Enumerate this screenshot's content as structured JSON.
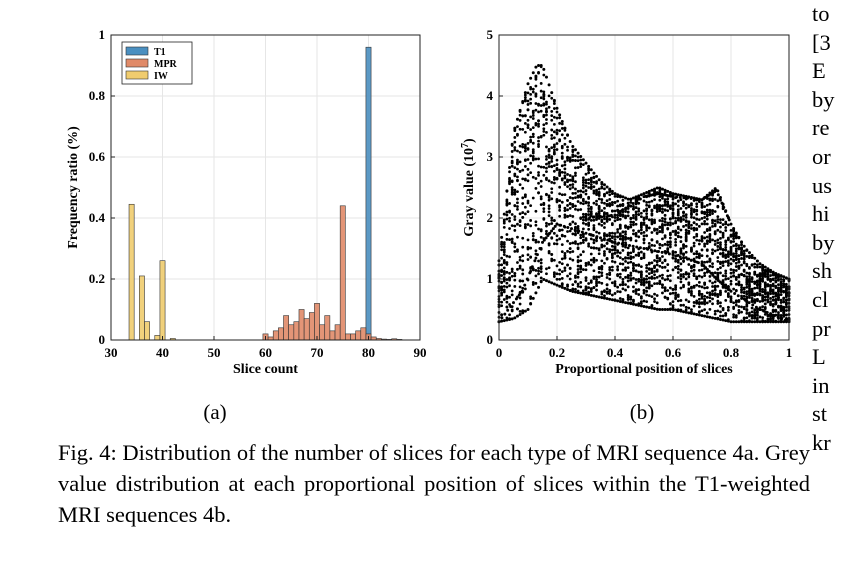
{
  "chart_data": [
    {
      "type": "bar",
      "panel_label": "(a)",
      "xlabel": "Slice count",
      "ylabel": "Frequency ratio (%)",
      "xlim": [
        30,
        90
      ],
      "ylim": [
        0,
        1
      ],
      "xticks": [
        "30",
        "40",
        "50",
        "60",
        "70",
        "80",
        "90"
      ],
      "yticks": [
        "0",
        "0.2",
        "0.4",
        "0.6",
        "0.8",
        "1"
      ],
      "bin_width": 1,
      "grid": true,
      "legend_position": "top-left",
      "series": [
        {
          "name": "T1",
          "color": "#4a8fc0",
          "x": [
            80
          ],
          "values": [
            0.96
          ]
        },
        {
          "name": "MPR",
          "color": "#e08a68",
          "x": [
            60,
            61,
            62,
            63,
            64,
            65,
            66,
            67,
            68,
            69,
            70,
            71,
            72,
            73,
            74,
            75,
            76,
            77,
            78,
            79,
            80,
            81,
            82,
            83,
            84,
            85,
            86
          ],
          "values": [
            0.02,
            0.01,
            0.03,
            0.04,
            0.08,
            0.05,
            0.06,
            0.1,
            0.07,
            0.09,
            0.12,
            0.05,
            0.08,
            0.03,
            0.05,
            0.44,
            0.02,
            0.02,
            0.03,
            0.04,
            0.02,
            0.01,
            0.005,
            0.003,
            0.002,
            0.004,
            0.002
          ]
        },
        {
          "name": "IW",
          "color": "#f0cc6e",
          "x": [
            34,
            35,
            36,
            37,
            38,
            39,
            40,
            41,
            42
          ],
          "values": [
            0.445,
            0.0,
            0.21,
            0.06,
            0.0,
            0.015,
            0.26,
            0.0,
            0.005
          ]
        }
      ]
    },
    {
      "type": "scatter",
      "panel_label": "(b)",
      "xlabel": "Proportional position of slices",
      "ylabel": "Gray value (10",
      "ylabel_exp": "7",
      "ylabel_end": ")",
      "xlim": [
        0,
        1
      ],
      "ylim": [
        0,
        5
      ],
      "xticks": [
        "0",
        "0.2",
        "0.4",
        "0.6",
        "0.8",
        "1"
      ],
      "yticks": [
        "0",
        "1",
        "2",
        "3",
        "4",
        "5"
      ],
      "grid": true,
      "color": "#000000",
      "envelope": {
        "x": [
          0.0,
          0.05,
          0.1,
          0.13,
          0.15,
          0.2,
          0.25,
          0.3,
          0.35,
          0.4,
          0.45,
          0.5,
          0.55,
          0.6,
          0.65,
          0.7,
          0.75,
          0.8,
          0.85,
          0.9,
          0.95,
          1.0
        ],
        "upper": [
          1.3,
          3.4,
          4.2,
          4.5,
          4.5,
          3.8,
          3.2,
          2.9,
          2.6,
          2.4,
          2.3,
          2.4,
          2.5,
          2.4,
          2.35,
          2.3,
          2.5,
          1.9,
          1.5,
          1.25,
          1.1,
          1.0
        ],
        "lower": [
          0.3,
          0.35,
          0.5,
          0.8,
          1.0,
          0.9,
          0.8,
          0.75,
          0.7,
          0.65,
          0.6,
          0.55,
          0.5,
          0.5,
          0.45,
          0.4,
          0.35,
          0.3,
          0.3,
          0.3,
          0.3,
          0.3
        ]
      },
      "highlight_curves": [
        {
          "x": [
            0.0,
            0.08,
            0.15,
            0.2,
            0.3,
            0.4,
            0.5,
            0.6,
            0.7,
            0.75,
            0.8,
            0.9,
            1.0
          ],
          "y": [
            0.3,
            0.8,
            1.6,
            1.9,
            1.75,
            1.6,
            1.5,
            1.4,
            1.25,
            1.0,
            0.8,
            0.5,
            0.3
          ]
        },
        {
          "x": [
            0.3,
            0.4,
            0.5,
            0.55,
            0.6,
            0.7,
            0.75,
            0.8
          ],
          "y": [
            2.0,
            2.05,
            2.35,
            2.4,
            2.35,
            2.3,
            2.45,
            1.9
          ]
        }
      ]
    }
  ],
  "figure": {
    "panel_a_label": "(a)",
    "panel_b_label": "(b)",
    "caption": "Fig. 4: Distribution of the number of slices for each type of MRI sequence 4a. Grey value distribution at each proportional position of slices within the T1-weighted MRI sequences 4b."
  },
  "side_text": [
    "to",
    "[3",
    "E",
    "by",
    "re",
    "or",
    "us",
    "hi",
    "by",
    "sh",
    "cl",
    "pr",
    "L",
    "in",
    "st",
    "kr"
  ]
}
